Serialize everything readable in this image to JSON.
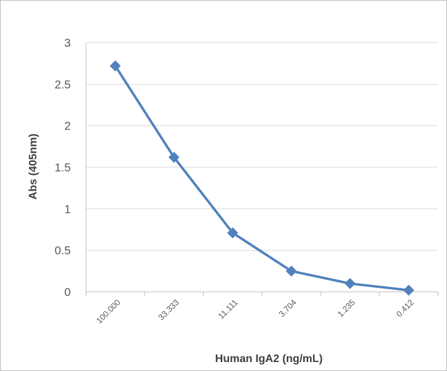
{
  "chart_data": {
    "type": "line",
    "categories": [
      "100.000",
      "33.333",
      "11.111",
      "3.704",
      "1.235",
      "0.412"
    ],
    "series": [
      {
        "values": [
          2.72,
          1.62,
          0.71,
          0.25,
          0.1,
          0.02
        ]
      }
    ],
    "xlabel": "Human IgA2 (ng/mL)",
    "ylabel": "Abs (405nm)",
    "ylim": [
      0,
      3
    ],
    "yticks": [
      "0",
      "0.5",
      "1",
      "1.5",
      "2",
      "2.5",
      "3"
    ],
    "grid": "horizontal",
    "legend": "none",
    "colors": {
      "series": "#4f81bd",
      "grid": "#d9d9d9",
      "axis": "#bfbfbf",
      "text": "#595959"
    }
  }
}
